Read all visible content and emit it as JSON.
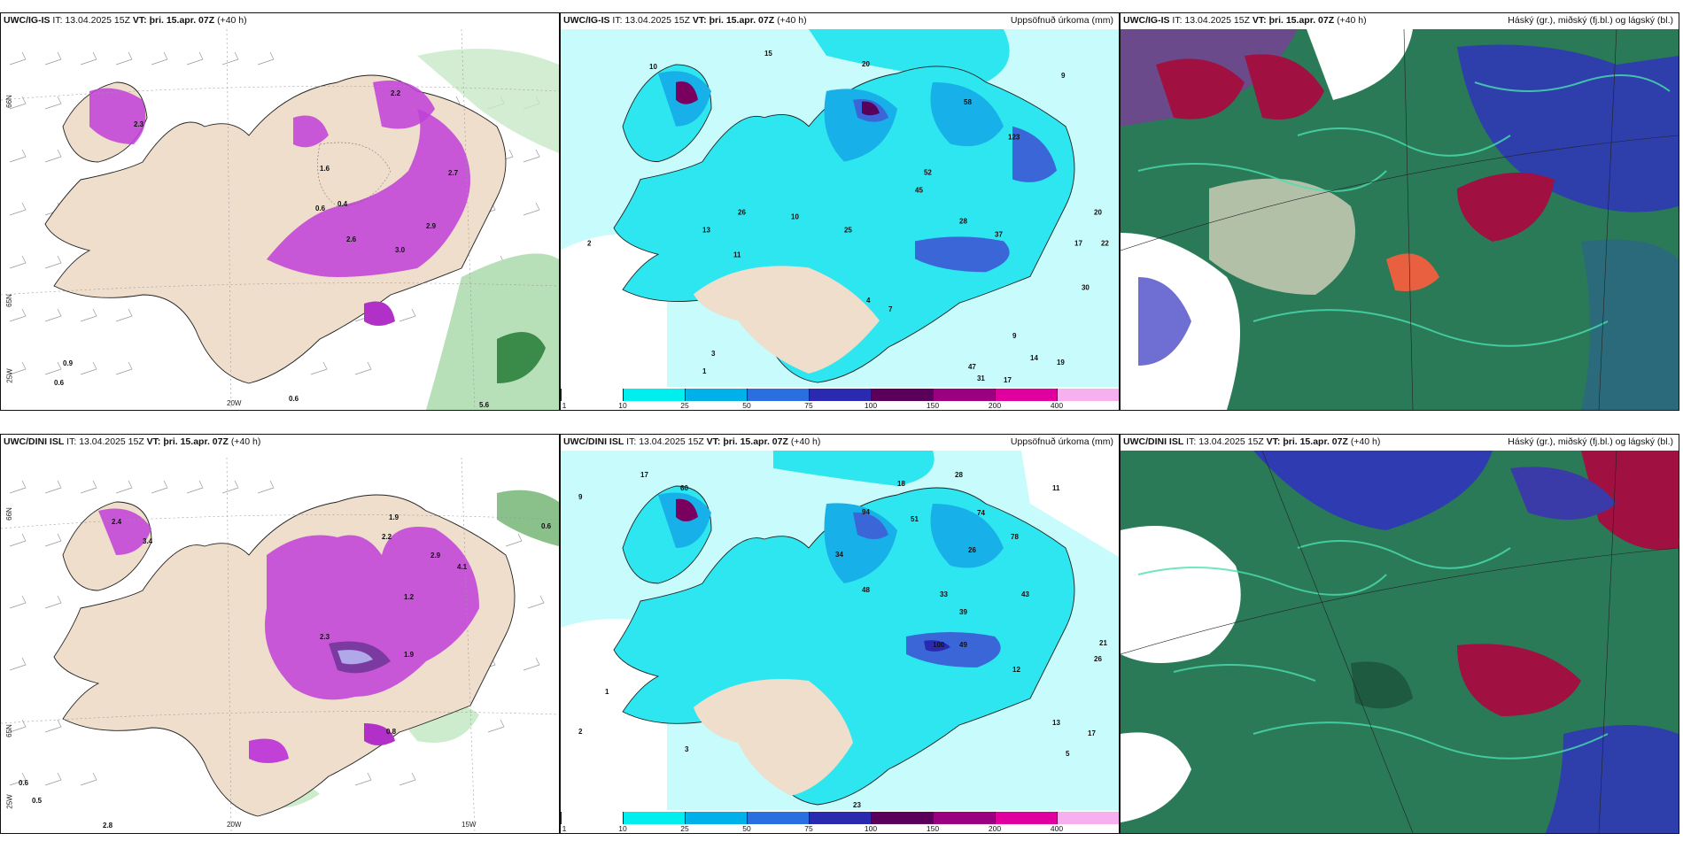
{
  "panels": [
    {
      "id": "p1",
      "model": "UWC/IG-IS",
      "it_label": "IT:",
      "it": "13.04.2025 15Z",
      "vt_label": "VT:",
      "vt": "þri. 15.apr. 07Z",
      "lead": "(+40 h)",
      "right_title": "",
      "axis_labels": [
        "66N",
        "65N",
        "25W",
        "20W"
      ],
      "value_labels": [
        "2.3",
        "2.2",
        "2.9",
        "2.6",
        "1.6",
        "0.6",
        "0.4",
        "3.0",
        "2.7",
        "0.9",
        "0.6",
        "0.6",
        "5.6"
      ]
    },
    {
      "id": "p2",
      "model": "UWC/IG-IS",
      "it_label": "IT:",
      "it": "13.04.2025 15Z",
      "vt_label": "VT:",
      "vt": "þri. 15.apr. 07Z",
      "lead": "(+40 h)",
      "right_title": "Uppsöfnuð úrkoma (mm)",
      "value_labels": [
        "15",
        "10",
        "20",
        "9",
        "58",
        "123",
        "52",
        "45",
        "28",
        "37",
        "30",
        "20",
        "22",
        "17",
        "2",
        "4",
        "7",
        "9",
        "14",
        "19",
        "47",
        "31",
        "17",
        "25",
        "26",
        "10",
        "11",
        "13",
        "3",
        "1"
      ]
    },
    {
      "id": "p3",
      "model": "UWC/IG-IS",
      "it_label": "IT:",
      "it": "13.04.2025 15Z",
      "vt_label": "VT:",
      "vt": "þri. 15.apr. 07Z",
      "lead": "(+40 h)",
      "right_title": "Háský (gr.), miðský (fj.bl.) og lágský (bl.)"
    },
    {
      "id": "p4",
      "model": "UWC/DINI ISL",
      "it_label": "IT:",
      "it": "13.04.2025 15Z",
      "vt_label": "VT:",
      "vt": "þri. 15.apr. 07Z",
      "lead": "(+40 h)",
      "right_title": "",
      "axis_labels": [
        "66N",
        "65N",
        "25W",
        "20W",
        "15W"
      ],
      "value_labels": [
        "2.4",
        "3.4",
        "1.9",
        "2.2",
        "2.9",
        "4.1",
        "1.2",
        "2.3",
        "1.9",
        "0.8",
        "0.6",
        "0.5",
        "0.6",
        "2.8"
      ]
    },
    {
      "id": "p5",
      "model": "UWC/DINI ISL",
      "it_label": "IT:",
      "it": "13.04.2025 15Z",
      "vt_label": "VT:",
      "vt": "þri. 15.apr. 07Z",
      "lead": "(+40 h)",
      "right_title": "Uppsöfnuð úrkoma (mm)",
      "value_labels": [
        "9",
        "17",
        "18",
        "28",
        "11",
        "60",
        "94",
        "74",
        "78",
        "51",
        "34",
        "48",
        "26",
        "33",
        "39",
        "43",
        "100",
        "49",
        "12",
        "21",
        "26",
        "13",
        "17",
        "5",
        "2",
        "3",
        "1",
        "23"
      ]
    },
    {
      "id": "p6",
      "model": "UWC/DINI ISL",
      "it_label": "IT:",
      "it": "13.04.2025 15Z",
      "vt_label": "VT:",
      "vt": "þri. 15.apr. 07Z",
      "lead": "(+40 h)",
      "right_title": "Háský (gr.), miðský (fj.bl.) og lágský (bl.)"
    }
  ],
  "colorbar": {
    "ticks": [
      "1",
      "10",
      "25",
      "50",
      "75",
      "100",
      "150",
      "200",
      "400"
    ],
    "colors": [
      "#ffffff",
      "#00eeee",
      "#00b0e8",
      "#2a6fe0",
      "#2a2ab0",
      "#5a005a",
      "#9a0080",
      "#e000a0",
      "#f6b0f0"
    ]
  },
  "colors": {
    "land": "#eedecb",
    "sea_precip_light": "#c8fbfb",
    "precip_cyan": "#2ee6f0",
    "precip_mid": "#18b0e8",
    "precip_blue": "#3a66d8",
    "purple": "#c040d8",
    "cloud_high": "#2a7a58",
    "cloud_mid": "#3030c0",
    "cloud_low": "#a01040"
  }
}
